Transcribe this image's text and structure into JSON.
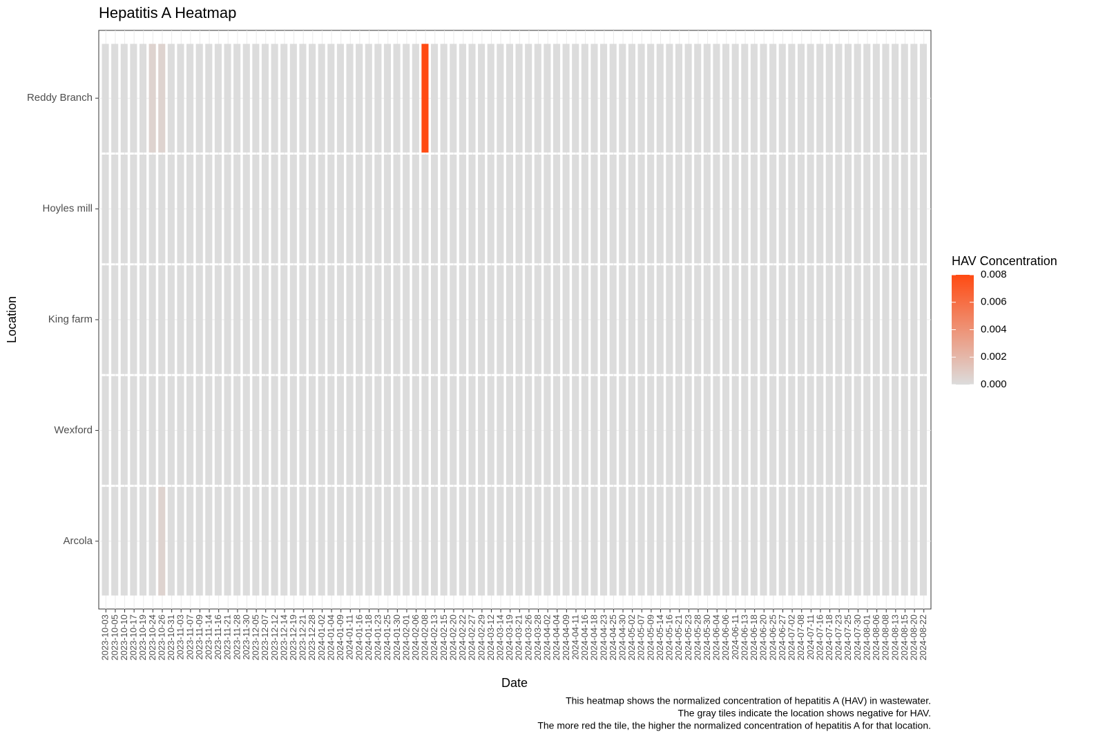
{
  "chart_data": {
    "type": "heatmap",
    "title": "Hepatitis A Heatmap",
    "x_label": "Date",
    "y_label": "Location",
    "caption": [
      "This heatmap shows the normalized concentration of hepatitis A (HAV) in wastewater.",
      "The gray tiles indicate the location shows negative for HAV.",
      "The more red the tile, the higher the normalized concentration of hepatitis A for that location."
    ],
    "categories": [
      "2023-10-03",
      "2023-10-05",
      "2023-10-10",
      "2023-10-17",
      "2023-10-19",
      "2023-10-24",
      "2023-10-26",
      "2023-10-31",
      "2023-11-03",
      "2023-11-07",
      "2023-11-09",
      "2023-11-14",
      "2023-11-16",
      "2023-11-21",
      "2023-11-28",
      "2023-11-30",
      "2023-12-05",
      "2023-12-07",
      "2023-12-12",
      "2023-12-14",
      "2023-12-19",
      "2023-12-21",
      "2023-12-28",
      "2024-01-02",
      "2024-01-04",
      "2024-01-09",
      "2024-01-11",
      "2024-01-16",
      "2024-01-18",
      "2024-01-23",
      "2024-01-25",
      "2024-01-30",
      "2024-02-01",
      "2024-02-06",
      "2024-02-08",
      "2024-02-13",
      "2024-02-15",
      "2024-02-20",
      "2024-02-22",
      "2024-02-27",
      "2024-02-29",
      "2024-03-12",
      "2024-03-14",
      "2024-03-19",
      "2024-03-21",
      "2024-03-26",
      "2024-03-28",
      "2024-04-02",
      "2024-04-04",
      "2024-04-09",
      "2024-04-11",
      "2024-04-16",
      "2024-04-18",
      "2024-04-23",
      "2024-04-25",
      "2024-04-30",
      "2024-05-02",
      "2024-05-07",
      "2024-05-09",
      "2024-05-14",
      "2024-05-16",
      "2024-05-21",
      "2024-05-23",
      "2024-05-28",
      "2024-05-30",
      "2024-06-04",
      "2024-06-06",
      "2024-06-11",
      "2024-06-13",
      "2024-06-18",
      "2024-06-20",
      "2024-06-25",
      "2024-06-27",
      "2024-07-02",
      "2024-07-08",
      "2024-07-11",
      "2024-07-16",
      "2024-07-18",
      "2024-07-23",
      "2024-07-25",
      "2024-07-30",
      "2024-08-01",
      "2024-08-06",
      "2024-08-08",
      "2024-08-13",
      "2024-08-15",
      "2024-08-20",
      "2024-08-22"
    ],
    "series": [
      {
        "name": "Reddy Branch",
        "values": [
          0,
          0,
          0,
          0,
          0,
          0.0005,
          0.0005,
          0,
          0,
          0,
          0,
          0,
          0,
          0,
          0,
          0,
          0,
          0,
          0,
          0,
          0,
          0,
          0,
          0,
          0,
          0,
          0,
          0,
          0,
          0,
          0,
          0,
          0,
          0,
          0.008,
          0,
          0,
          0,
          0,
          0,
          0,
          0,
          0,
          0,
          0,
          0,
          0,
          0,
          0,
          0,
          0,
          0,
          0,
          0,
          0,
          0,
          0,
          0,
          0,
          0,
          0,
          0,
          0,
          0,
          0,
          0,
          0,
          0,
          0,
          0,
          0,
          0,
          0,
          0,
          0,
          0,
          0,
          0,
          0,
          0,
          0,
          0,
          0,
          0,
          0,
          0,
          0,
          0
        ]
      },
      {
        "name": "Hoyles mill",
        "values": [
          0,
          0,
          0,
          0,
          0,
          0,
          0,
          0,
          0,
          0,
          0,
          0,
          0,
          0,
          0,
          0,
          0,
          0,
          0,
          0,
          0,
          0,
          0,
          0,
          0,
          0,
          0,
          0,
          0,
          0,
          0,
          0,
          0,
          0,
          0,
          0,
          0,
          0,
          0,
          0,
          0,
          0,
          0,
          0,
          0,
          0,
          0,
          0,
          0,
          0,
          0,
          0,
          0,
          0,
          0,
          0,
          0,
          0,
          0,
          0,
          0,
          0,
          0,
          0,
          0,
          0,
          0,
          0,
          0,
          0,
          0,
          0,
          0,
          0,
          0,
          0,
          0,
          0,
          0,
          0,
          0,
          0,
          0,
          0,
          0,
          0,
          0,
          0
        ]
      },
      {
        "name": "King farm",
        "values": [
          0,
          0,
          0,
          0,
          0,
          0,
          0,
          0,
          0,
          0,
          0,
          0,
          0,
          0,
          0,
          0,
          0,
          0,
          0,
          0,
          0,
          0,
          0,
          0,
          0,
          0,
          0,
          0,
          0,
          0,
          0,
          0,
          0,
          0,
          0,
          0,
          0,
          0,
          0,
          0,
          0,
          0,
          0,
          0,
          0,
          0,
          0,
          0,
          0,
          0,
          0,
          0,
          0,
          0,
          0,
          0,
          0,
          0,
          0,
          0,
          0,
          0,
          0,
          0,
          0,
          0,
          0,
          0,
          0,
          0,
          0,
          0,
          0,
          0,
          0,
          0,
          0,
          0,
          0,
          0,
          0,
          0,
          0,
          0,
          0,
          0,
          0,
          0
        ]
      },
      {
        "name": "Wexford",
        "values": [
          0,
          0,
          0,
          0,
          0,
          0,
          0,
          0,
          0,
          0,
          0,
          0,
          0,
          0,
          0,
          0,
          0,
          0,
          0,
          0,
          0,
          0,
          0,
          0,
          0,
          0,
          0,
          0,
          0,
          0,
          0,
          0,
          0,
          0,
          0,
          0,
          0,
          0,
          0,
          0,
          0,
          0,
          0,
          0,
          0,
          0,
          0,
          0,
          0,
          0,
          0,
          0,
          0,
          0,
          0,
          0,
          0,
          0,
          0,
          0,
          0,
          0,
          0,
          0,
          0,
          0,
          0,
          0,
          0,
          0,
          0,
          0,
          0,
          0,
          0,
          0,
          0,
          0,
          0,
          0,
          0,
          0,
          0,
          0,
          0,
          0,
          0,
          0
        ]
      },
      {
        "name": "Arcola",
        "values": [
          0,
          0,
          0,
          0,
          0,
          0,
          0.0005,
          0,
          0,
          0,
          0,
          0,
          0,
          0,
          0,
          0,
          0,
          0,
          0,
          0,
          0,
          0,
          0,
          0,
          0,
          0,
          0,
          0,
          0,
          0,
          0,
          0,
          0,
          0,
          0,
          0,
          0,
          0,
          0,
          0,
          0,
          0,
          0,
          0,
          0,
          0,
          0,
          0,
          0,
          0,
          0,
          0,
          0,
          0,
          0,
          0,
          0,
          0,
          0,
          0,
          0,
          0,
          0,
          0,
          0,
          0,
          0,
          0,
          0,
          0,
          0,
          0,
          0,
          0,
          0,
          0,
          0,
          0,
          0,
          0,
          0,
          0,
          0,
          0,
          0,
          0,
          0,
          0
        ]
      }
    ],
    "colorbar": {
      "title": "HAV Concentration",
      "low_color": "#dcdcdc",
      "high_color": "#ff4a12",
      "lim": [
        0,
        0.008
      ],
      "ticks": [
        {
          "value": 0,
          "label": "0.000"
        },
        {
          "value": 0.002,
          "label": "0.002"
        },
        {
          "value": 0.004,
          "label": "0.004"
        },
        {
          "value": 0.006,
          "label": "0.006"
        },
        {
          "value": 0.008,
          "label": "0.008"
        }
      ]
    }
  }
}
